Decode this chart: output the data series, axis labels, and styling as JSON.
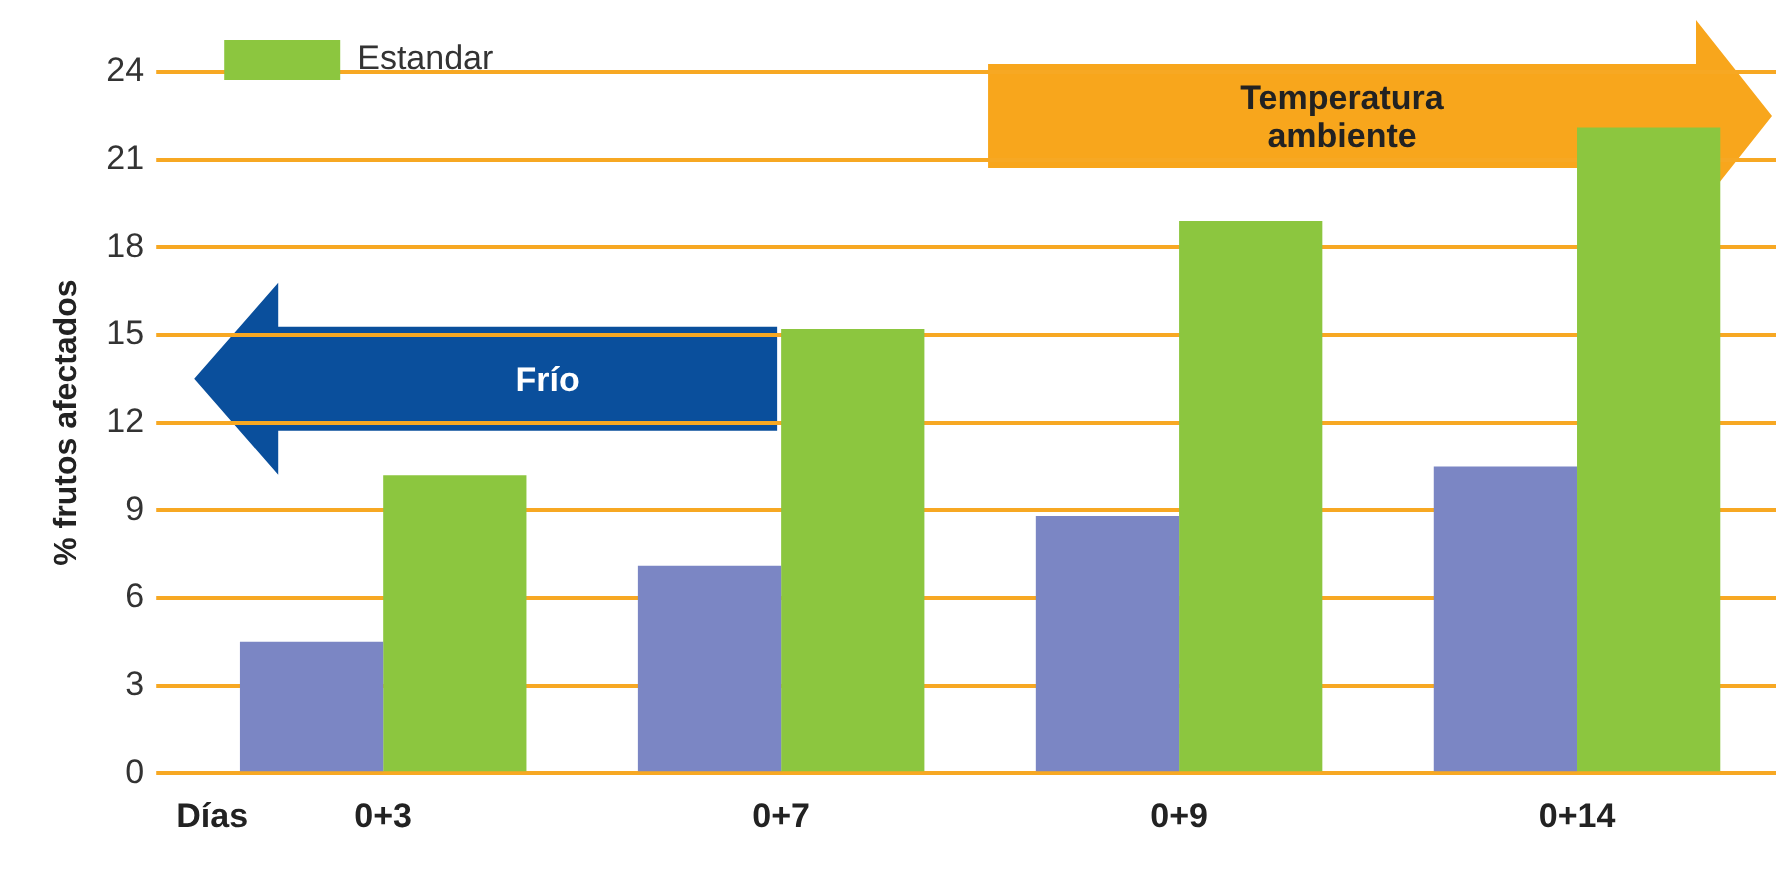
{
  "chart_data": {
    "type": "bar",
    "xlabel": "Días",
    "ylabel": "% frutos afectados",
    "categories": [
      "0+3",
      "0+7",
      "0+9",
      "0+14"
    ],
    "series": [
      {
        "color": "#7b86c4",
        "values": [
          4.5,
          7.1,
          8.8,
          10.5
        ]
      },
      {
        "name": "Estandar",
        "color": "#8cc63f",
        "values": [
          10.2,
          15.2,
          18.9,
          22.1
        ]
      }
    ],
    "ylim": [
      0,
      24
    ],
    "yticks": [
      0,
      3,
      6,
      9,
      12,
      15,
      18,
      21,
      24
    ],
    "grid": "y",
    "legend": "top left",
    "annotations": [
      "Frío",
      "Temperatura ambiente"
    ]
  }
}
